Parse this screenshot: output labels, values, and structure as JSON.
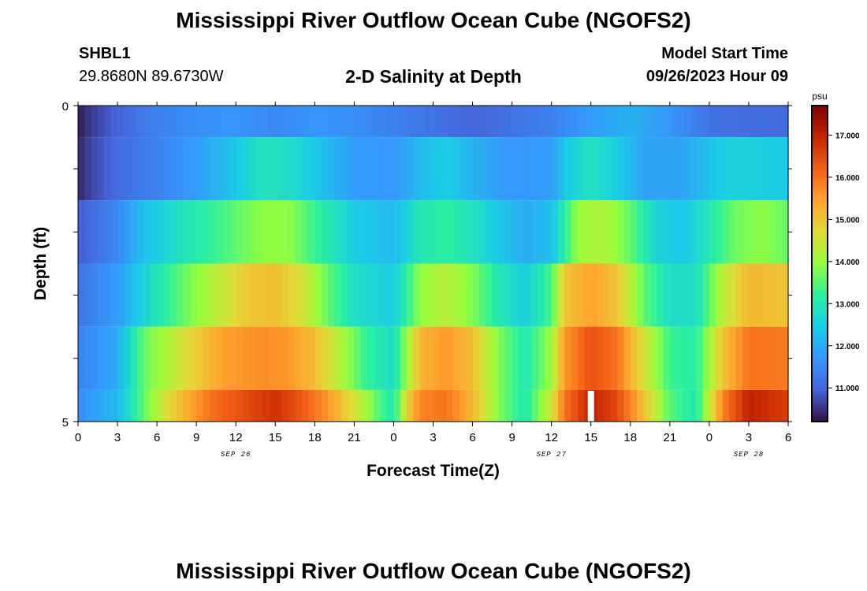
{
  "header": {
    "title": "Mississippi River Outflow Ocean Cube (NGOFS2)",
    "station": "SHBL1",
    "coords": "29.8680N  89.6730W",
    "subtitle": "2-D Salinity at Depth",
    "model_label": "Model Start Time",
    "model_date": "09/26/2023 Hour 09"
  },
  "footer": {
    "title": "Mississippi River Outflow Ocean Cube (NGOFS2)"
  },
  "chart_data": {
    "type": "heatmap",
    "xlabel": "Forecast Time(Z)",
    "ylabel": "Depth (ft)",
    "xlim": [
      0,
      54
    ],
    "ylim": [
      0,
      5
    ],
    "x_ticks": [
      0,
      3,
      6,
      9,
      12,
      15,
      18,
      21,
      24,
      27,
      30,
      33,
      36,
      39,
      42,
      45,
      48,
      51,
      54
    ],
    "x_tick_labels": [
      "0",
      "3",
      "6",
      "9",
      "12",
      "15",
      "18",
      "21",
      "0",
      "3",
      "6",
      "9",
      "12",
      "15",
      "18",
      "21",
      "0",
      "3",
      "6"
    ],
    "y_tick_labels": [
      "0",
      "5"
    ],
    "date_labels": [
      {
        "text": "SEP 26",
        "x": 12
      },
      {
        "text": "SEP 27",
        "x": 36
      },
      {
        "text": "SEP 28",
        "x": 51
      }
    ],
    "colorbar": {
      "unit": "psu",
      "min": 10.2,
      "max": 17.7,
      "ticks": [
        11.0,
        12.0,
        13.0,
        14.0,
        15.0,
        16.0,
        17.0
      ],
      "tick_labels": [
        "11.000",
        "12.000",
        "13.000",
        "14.000",
        "15.000",
        "16.000",
        "17.000"
      ]
    },
    "layers": [
      {
        "depth_range": [
          0,
          0.5
        ],
        "points": [
          [
            0,
            10.3
          ],
          [
            1,
            10.6
          ],
          [
            3,
            11.0
          ],
          [
            6,
            11.4
          ],
          [
            9,
            11.6
          ],
          [
            12,
            11.7
          ],
          [
            15,
            11.5
          ],
          [
            18,
            11.7
          ],
          [
            21,
            11.6
          ],
          [
            24,
            11.4
          ],
          [
            27,
            11.2
          ],
          [
            30,
            11.0
          ],
          [
            33,
            11.2
          ],
          [
            36,
            11.4
          ],
          [
            39,
            11.8
          ],
          [
            42,
            12.1
          ],
          [
            45,
            11.7
          ],
          [
            48,
            11.2
          ],
          [
            51,
            11.1
          ],
          [
            54,
            11.1
          ]
        ]
      },
      {
        "depth_range": [
          0.5,
          1.5
        ],
        "points": [
          [
            0,
            10.4
          ],
          [
            1,
            10.7
          ],
          [
            3,
            11.1
          ],
          [
            6,
            11.4
          ],
          [
            9,
            11.8
          ],
          [
            12,
            12.4
          ],
          [
            14,
            12.9
          ],
          [
            16,
            12.8
          ],
          [
            18,
            12.4
          ],
          [
            21,
            11.8
          ],
          [
            24,
            11.7
          ],
          [
            26,
            12.2
          ],
          [
            28,
            12.5
          ],
          [
            30,
            12.1
          ],
          [
            33,
            11.7
          ],
          [
            36,
            11.8
          ],
          [
            37,
            12.4
          ],
          [
            39,
            12.9
          ],
          [
            41,
            12.5
          ],
          [
            43,
            11.9
          ],
          [
            46,
            11.9
          ],
          [
            49,
            12.5
          ],
          [
            51,
            12.6
          ],
          [
            54,
            12.4
          ]
        ]
      },
      {
        "depth_range": [
          1.5,
          2.5
        ],
        "points": [
          [
            0,
            10.9
          ],
          [
            3,
            11.5
          ],
          [
            5,
            12.3
          ],
          [
            8,
            12.9
          ],
          [
            11,
            13.4
          ],
          [
            14,
            13.9
          ],
          [
            16,
            13.9
          ],
          [
            18,
            13.3
          ],
          [
            21,
            12.5
          ],
          [
            24,
            12.2
          ],
          [
            26,
            13.0
          ],
          [
            28,
            13.2
          ],
          [
            30,
            12.9
          ],
          [
            32,
            12.4
          ],
          [
            34,
            12.0
          ],
          [
            36,
            12.3
          ],
          [
            38,
            14.0
          ],
          [
            40,
            14.2
          ],
          [
            42,
            13.6
          ],
          [
            44,
            12.6
          ],
          [
            46,
            12.4
          ],
          [
            48,
            13.0
          ],
          [
            50,
            13.7
          ],
          [
            52,
            13.9
          ],
          [
            54,
            13.6
          ]
        ]
      },
      {
        "depth_range": [
          2.5,
          3.5
        ],
        "points": [
          [
            0,
            11.2
          ],
          [
            3,
            11.8
          ],
          [
            5,
            12.6
          ],
          [
            7,
            13.3
          ],
          [
            10,
            14.2
          ],
          [
            13,
            15.0
          ],
          [
            15,
            15.1
          ],
          [
            17,
            14.6
          ],
          [
            19,
            13.6
          ],
          [
            21,
            12.8
          ],
          [
            24,
            12.5
          ],
          [
            26,
            13.9
          ],
          [
            28,
            14.3
          ],
          [
            30,
            13.8
          ],
          [
            32,
            13.0
          ],
          [
            34,
            12.5
          ],
          [
            36,
            13.4
          ],
          [
            37,
            15.0
          ],
          [
            39,
            15.5
          ],
          [
            41,
            15.0
          ],
          [
            43,
            13.6
          ],
          [
            45,
            12.8
          ],
          [
            47,
            12.8
          ],
          [
            49,
            14.3
          ],
          [
            51,
            15.2
          ],
          [
            54,
            15.0
          ]
        ]
      },
      {
        "depth_range": [
          3.5,
          4.5
        ],
        "points": [
          [
            0,
            11.4
          ],
          [
            3,
            12.0
          ],
          [
            4,
            12.8
          ],
          [
            5,
            13.6
          ],
          [
            8,
            14.6
          ],
          [
            11,
            15.5
          ],
          [
            14,
            15.7
          ],
          [
            16,
            15.6
          ],
          [
            18,
            15.1
          ],
          [
            20,
            14.2
          ],
          [
            22,
            13.2
          ],
          [
            24,
            12.8
          ],
          [
            25,
            14.0
          ],
          [
            26,
            15.2
          ],
          [
            28,
            15.6
          ],
          [
            30,
            15.1
          ],
          [
            32,
            13.8
          ],
          [
            34,
            13.0
          ],
          [
            36,
            14.0
          ],
          [
            37,
            15.6
          ],
          [
            39,
            16.4
          ],
          [
            41,
            16.0
          ],
          [
            43,
            14.6
          ],
          [
            45,
            13.3
          ],
          [
            47,
            13.1
          ],
          [
            49,
            15.0
          ],
          [
            51,
            16.0
          ],
          [
            54,
            15.9
          ]
        ]
      },
      {
        "depth_range": [
          4.5,
          5
        ],
        "points": [
          [
            0,
            11.6
          ],
          [
            3,
            12.2
          ],
          [
            4,
            12.9
          ],
          [
            5,
            13.6
          ],
          [
            7,
            14.8
          ],
          [
            10,
            16.0
          ],
          [
            13,
            16.5
          ],
          [
            15,
            16.8
          ],
          [
            17,
            16.3
          ],
          [
            19,
            15.6
          ],
          [
            21,
            14.6
          ],
          [
            23,
            13.4
          ],
          [
            24,
            13.0
          ],
          [
            25,
            14.8
          ],
          [
            26,
            15.8
          ],
          [
            28,
            16.0
          ],
          [
            30,
            15.2
          ],
          [
            32,
            13.8
          ],
          [
            34,
            13.0
          ],
          [
            36,
            14.5
          ],
          [
            37,
            16.0
          ],
          [
            39,
            17.0
          ],
          [
            41,
            16.5
          ],
          [
            43,
            15.1
          ],
          [
            45,
            13.5
          ],
          [
            47,
            13.0
          ],
          [
            49,
            15.8
          ],
          [
            51,
            17.0
          ],
          [
            54,
            16.6
          ]
        ]
      }
    ],
    "gap_marker": {
      "x": 39,
      "depth_range": [
        4.5,
        5
      ]
    }
  }
}
